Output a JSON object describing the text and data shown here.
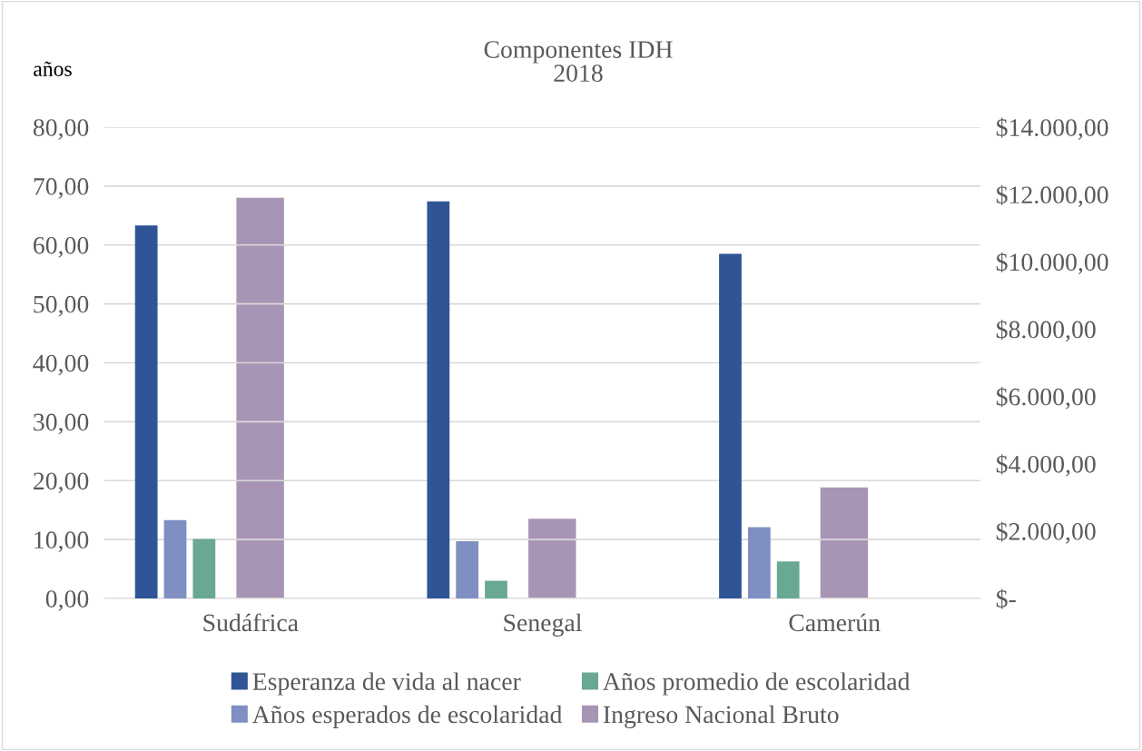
{
  "chart_data": {
    "type": "bar",
    "title": "Componentes IDH\n2018",
    "ylabel": "años",
    "categories": [
      "Sudáfrica",
      "Senegal",
      "Camerún"
    ],
    "series": [
      {
        "name": "Esperanza de vida al nacer",
        "color": "#2f5597",
        "values": [
          63.3,
          67.4,
          58.5
        ]
      },
      {
        "name": "Años esperados de escolaridad",
        "color": "#7f8fc1",
        "values": [
          13.3,
          9.7,
          12.1
        ]
      },
      {
        "name": "Años promedio de escolaridad",
        "color": "#69a893",
        "values": [
          10.1,
          3.0,
          6.3
        ]
      },
      {
        "name": "Ingreso Nacional Bruto",
        "color": "#a895b5",
        "values": [
          11900,
          2370,
          3300
        ],
        "axis": "y2"
      }
    ],
    "ylim": [
      0,
      80
    ],
    "yticks": [
      {
        "value": 0,
        "label": "0,00"
      },
      {
        "value": 10,
        "label": "10,00"
      },
      {
        "value": 20,
        "label": "20,00"
      },
      {
        "value": 30,
        "label": "30,00"
      },
      {
        "value": 40,
        "label": "40,00"
      },
      {
        "value": 50,
        "label": "50,00"
      },
      {
        "value": 60,
        "label": "60,00"
      },
      {
        "value": 70,
        "label": "70,00"
      },
      {
        "value": 80,
        "label": "80,00"
      }
    ],
    "y2lim": [
      0,
      14000
    ],
    "y2ticks": [
      {
        "value": 0,
        "label": "$-"
      },
      {
        "value": 2000,
        "label": "$2.000,00"
      },
      {
        "value": 4000,
        "label": "$4.000,00"
      },
      {
        "value": 6000,
        "label": "$6.000,00"
      },
      {
        "value": 8000,
        "label": "$8.000,00"
      },
      {
        "value": 10000,
        "label": "$10.000,00"
      },
      {
        "value": 12000,
        "label": "$12.000,00"
      },
      {
        "value": 14000,
        "label": "$14.000,00"
      }
    ],
    "grid": "y",
    "legend": "bottom"
  }
}
